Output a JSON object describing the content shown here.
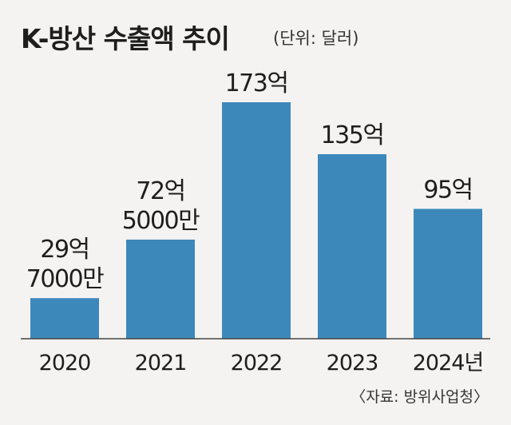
{
  "chart_data": {
    "type": "bar",
    "title": "K-방산 수출액 추이",
    "unit_note": "(단위: 달러)",
    "categories": [
      "2020",
      "2021",
      "2022",
      "2023",
      "2024년"
    ],
    "values": [
      29.7,
      72.5,
      173,
      135,
      95
    ],
    "value_labels": [
      [
        "29억",
        "7000만"
      ],
      [
        "72억",
        "5000만"
      ],
      [
        "173억"
      ],
      [
        "135억"
      ],
      [
        "95억"
      ]
    ],
    "source": "〈자료: 방위사업청〉",
    "ylim": [
      0,
      173
    ],
    "bar_color": "#3d88bb",
    "baseline_color": "#444444",
    "grid": false
  }
}
